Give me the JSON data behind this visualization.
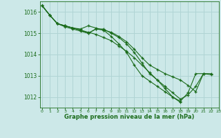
{
  "background_color": "#cce8e8",
  "grid_color": "#b0d4d4",
  "line_color": "#1a6b1a",
  "marker_color": "#1a6b1a",
  "xlabel": "Graphe pression niveau de la mer (hPa)",
  "ylim": [
    1011.5,
    1016.5
  ],
  "xlim": [
    -0.3,
    23
  ],
  "yticks": [
    1012,
    1013,
    1014,
    1015,
    1016
  ],
  "xticks": [
    0,
    1,
    2,
    3,
    4,
    5,
    6,
    7,
    8,
    9,
    10,
    11,
    12,
    13,
    14,
    15,
    16,
    17,
    18,
    19,
    20,
    21,
    22,
    23
  ],
  "series": [
    [
      1016.3,
      1015.85,
      1015.45,
      1015.35,
      1015.25,
      1015.2,
      1015.35,
      1015.25,
      1015.15,
      1015.05,
      1014.85,
      1014.6,
      1014.25,
      1013.85,
      1013.5,
      1013.3,
      1013.1,
      1012.95,
      1012.8,
      1012.55,
      1012.25,
      1013.1,
      1013.05,
      null
    ],
    [
      1016.3,
      1015.85,
      1015.45,
      1015.35,
      1015.25,
      1015.15,
      1015.05,
      1014.95,
      1014.8,
      1014.65,
      1014.4,
      1014.15,
      1013.85,
      1013.5,
      1013.15,
      1012.8,
      1012.5,
      1012.2,
      1011.9,
      1012.1,
      1012.5,
      1013.1,
      1013.1,
      null
    ],
    [
      1016.3,
      1015.85,
      1015.45,
      1015.35,
      1015.25,
      1015.15,
      1015.0,
      1015.2,
      1015.15,
      1014.85,
      1014.5,
      1014.1,
      1013.5,
      1013.0,
      1012.75,
      1012.5,
      1012.25,
      1012.0,
      1011.75,
      null,
      null,
      null,
      null,
      null
    ],
    [
      1016.3,
      1015.85,
      1015.45,
      1015.3,
      1015.2,
      1015.1,
      1015.0,
      1015.2,
      1015.2,
      1015.0,
      1014.8,
      1014.5,
      1014.1,
      1013.6,
      1013.1,
      1012.8,
      1012.4,
      1012.0,
      1011.8,
      1012.2,
      1013.1,
      1013.1,
      null,
      null
    ]
  ]
}
